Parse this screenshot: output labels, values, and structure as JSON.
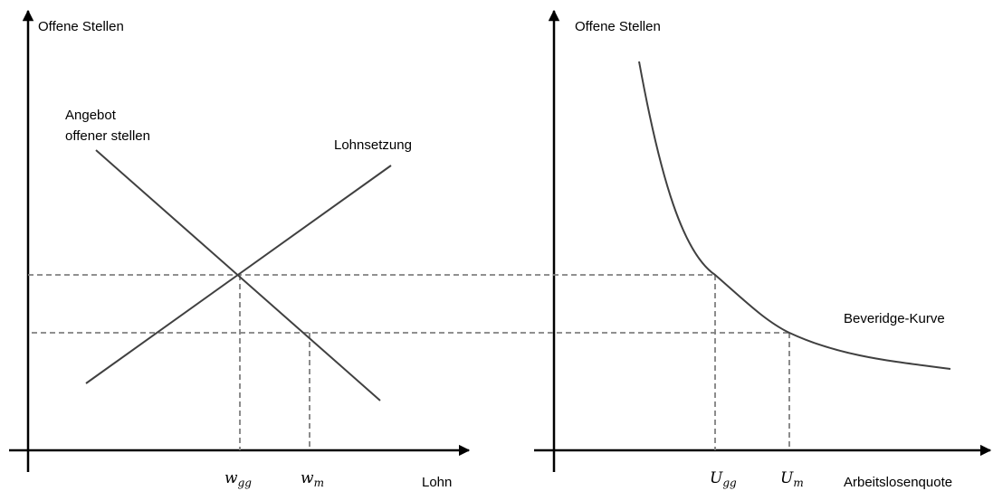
{
  "left_panel": {
    "y_axis_label": "Offene Stellen",
    "x_axis_label": "Lohn",
    "supply_label": [
      "Angebot",
      "offener stellen"
    ],
    "wage_setting_label": "Lohnsetzung",
    "w_gg": {
      "base": "w",
      "sub": "gg"
    },
    "w_m": {
      "base": "w",
      "sub": "m"
    }
  },
  "right_panel": {
    "y_axis_label": "Offene Stellen",
    "x_axis_label": "Arbeitslosenquote",
    "curve_label": "Beveridge-Kurve",
    "u_gg": {
      "base": "U",
      "sub": "gg"
    },
    "u_m": {
      "base": "U",
      "sub": "m"
    }
  }
}
